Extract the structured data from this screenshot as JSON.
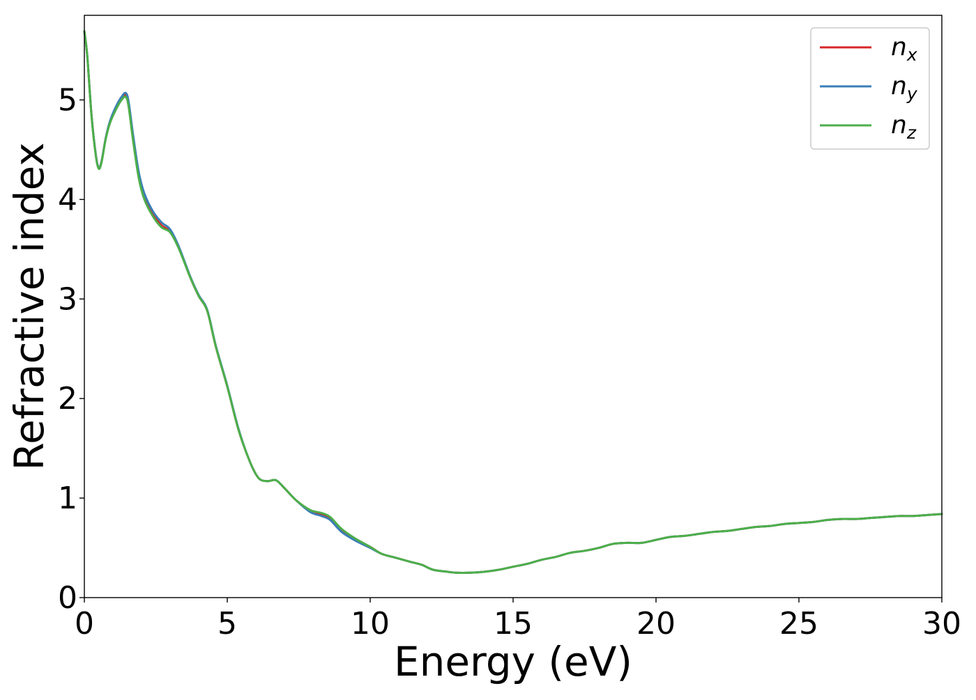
{
  "chart_data": {
    "type": "line",
    "title": "",
    "xlabel": "Energy (eV)",
    "ylabel": "Refractive index",
    "xlim": [
      0,
      30
    ],
    "ylim": [
      0,
      5.85
    ],
    "xticks": [
      0,
      5,
      10,
      15,
      20,
      25,
      30
    ],
    "yticks": [
      0,
      1,
      2,
      3,
      4,
      5
    ],
    "xtick_labels": [
      "0",
      "5",
      "10",
      "15",
      "20",
      "25",
      "30"
    ],
    "ytick_labels": [
      "0",
      "1",
      "2",
      "3",
      "4",
      "5"
    ],
    "grid": false,
    "legend_position": "top-right",
    "series": [
      {
        "name": "n_x",
        "legend_main": "n",
        "legend_sub": "x",
        "color": "#d62728",
        "x": [
          0,
          0.1,
          0.25,
          0.4,
          0.5,
          0.6,
          0.75,
          0.9,
          1.1,
          1.3,
          1.45,
          1.55,
          1.7,
          1.9,
          2.1,
          2.4,
          2.7,
          3.0,
          3.3,
          3.7,
          4.0,
          4.3,
          4.6,
          5.0,
          5.4,
          5.8,
          6.1,
          6.4,
          6.7,
          7.0,
          7.4,
          7.9,
          8.3,
          8.6,
          9.0,
          9.5,
          10.0,
          10.4,
          10.9,
          11.4,
          11.8,
          12.2,
          12.7,
          13.0,
          13.5,
          14.0,
          14.5,
          15.0,
          15.5,
          16.0,
          16.5,
          17.0,
          17.5,
          18.0,
          18.5,
          19.0,
          19.5,
          20.0,
          20.5,
          21.0,
          21.5,
          22.0,
          22.5,
          23.0,
          23.5,
          24.0,
          24.5,
          25.0,
          25.5,
          26.0,
          26.5,
          27.0,
          27.5,
          28.0,
          28.5,
          29.0,
          29.5,
          30.0
        ],
        "y": [
          5.69,
          5.45,
          4.85,
          4.45,
          4.32,
          4.38,
          4.62,
          4.78,
          4.92,
          5.02,
          5.05,
          4.95,
          4.62,
          4.25,
          4.02,
          3.85,
          3.74,
          3.68,
          3.52,
          3.22,
          3.03,
          2.88,
          2.52,
          2.12,
          1.68,
          1.36,
          1.2,
          1.17,
          1.18,
          1.1,
          0.98,
          0.87,
          0.84,
          0.8,
          0.68,
          0.58,
          0.51,
          0.44,
          0.4,
          0.36,
          0.33,
          0.28,
          0.26,
          0.25,
          0.25,
          0.26,
          0.28,
          0.31,
          0.34,
          0.38,
          0.41,
          0.45,
          0.47,
          0.5,
          0.54,
          0.55,
          0.55,
          0.58,
          0.61,
          0.62,
          0.64,
          0.66,
          0.67,
          0.69,
          0.71,
          0.72,
          0.74,
          0.75,
          0.76,
          0.78,
          0.79,
          0.79,
          0.8,
          0.81,
          0.82,
          0.82,
          0.83,
          0.84
        ]
      },
      {
        "name": "n_y",
        "legend_main": "n",
        "legend_sub": "y",
        "color": "#3a7eb8",
        "x": [
          0,
          0.1,
          0.25,
          0.4,
          0.5,
          0.6,
          0.75,
          0.9,
          1.1,
          1.3,
          1.45,
          1.55,
          1.7,
          1.9,
          2.1,
          2.4,
          2.7,
          3.0,
          3.3,
          3.7,
          4.0,
          4.3,
          4.6,
          5.0,
          5.4,
          5.8,
          6.1,
          6.4,
          6.7,
          7.0,
          7.4,
          7.9,
          8.3,
          8.6,
          9.0,
          9.5,
          10.0,
          10.4,
          10.9,
          11.4,
          11.8,
          12.2,
          12.7,
          13.0,
          13.5,
          14.0,
          14.5,
          15.0,
          15.5,
          16.0,
          16.5,
          17.0,
          17.5,
          18.0,
          18.5,
          19.0,
          19.5,
          20.0,
          20.5,
          21.0,
          21.5,
          22.0,
          22.5,
          23.0,
          23.5,
          24.0,
          24.5,
          25.0,
          25.5,
          26.0,
          26.5,
          27.0,
          27.5,
          28.0,
          28.5,
          29.0,
          29.5,
          30.0
        ],
        "y": [
          5.69,
          5.45,
          4.85,
          4.45,
          4.32,
          4.38,
          4.62,
          4.79,
          4.93,
          5.03,
          5.07,
          4.98,
          4.66,
          4.28,
          4.06,
          3.88,
          3.77,
          3.7,
          3.53,
          3.23,
          3.04,
          2.89,
          2.53,
          2.13,
          1.69,
          1.36,
          1.2,
          1.17,
          1.18,
          1.1,
          0.98,
          0.86,
          0.82,
          0.78,
          0.66,
          0.57,
          0.5,
          0.44,
          0.4,
          0.36,
          0.33,
          0.28,
          0.26,
          0.25,
          0.25,
          0.26,
          0.28,
          0.31,
          0.34,
          0.38,
          0.41,
          0.45,
          0.47,
          0.5,
          0.54,
          0.55,
          0.55,
          0.58,
          0.61,
          0.62,
          0.64,
          0.66,
          0.67,
          0.69,
          0.71,
          0.72,
          0.74,
          0.75,
          0.76,
          0.78,
          0.79,
          0.79,
          0.8,
          0.81,
          0.82,
          0.82,
          0.83,
          0.84
        ]
      },
      {
        "name": "n_z",
        "legend_main": "n",
        "legend_sub": "z",
        "color": "#4daf4a",
        "x": [
          0,
          0.1,
          0.25,
          0.4,
          0.5,
          0.6,
          0.75,
          0.9,
          1.1,
          1.3,
          1.45,
          1.55,
          1.7,
          1.9,
          2.1,
          2.4,
          2.7,
          3.0,
          3.3,
          3.7,
          4.0,
          4.3,
          4.6,
          5.0,
          5.4,
          5.8,
          6.1,
          6.4,
          6.7,
          7.0,
          7.4,
          7.9,
          8.3,
          8.6,
          9.0,
          9.5,
          10.0,
          10.4,
          10.9,
          11.4,
          11.8,
          12.2,
          12.7,
          13.0,
          13.5,
          14.0,
          14.5,
          15.0,
          15.5,
          16.0,
          16.5,
          17.0,
          17.5,
          18.0,
          18.5,
          19.0,
          19.5,
          20.0,
          20.5,
          21.0,
          21.5,
          22.0,
          22.5,
          23.0,
          23.5,
          24.0,
          24.5,
          25.0,
          25.5,
          26.0,
          26.5,
          27.0,
          27.5,
          28.0,
          28.5,
          29.0,
          29.5,
          30.0
        ],
        "y": [
          5.69,
          5.45,
          4.84,
          4.44,
          4.31,
          4.37,
          4.61,
          4.77,
          4.9,
          5.0,
          5.03,
          4.93,
          4.6,
          4.22,
          4.0,
          3.83,
          3.72,
          3.67,
          3.51,
          3.22,
          3.03,
          2.88,
          2.52,
          2.12,
          1.68,
          1.36,
          1.2,
          1.17,
          1.18,
          1.1,
          0.98,
          0.88,
          0.85,
          0.81,
          0.69,
          0.59,
          0.51,
          0.44,
          0.4,
          0.36,
          0.33,
          0.28,
          0.26,
          0.25,
          0.25,
          0.26,
          0.28,
          0.31,
          0.34,
          0.38,
          0.41,
          0.45,
          0.47,
          0.5,
          0.54,
          0.55,
          0.55,
          0.58,
          0.61,
          0.62,
          0.64,
          0.66,
          0.67,
          0.69,
          0.71,
          0.72,
          0.74,
          0.75,
          0.76,
          0.78,
          0.79,
          0.79,
          0.8,
          0.81,
          0.82,
          0.82,
          0.83,
          0.84
        ]
      }
    ]
  }
}
